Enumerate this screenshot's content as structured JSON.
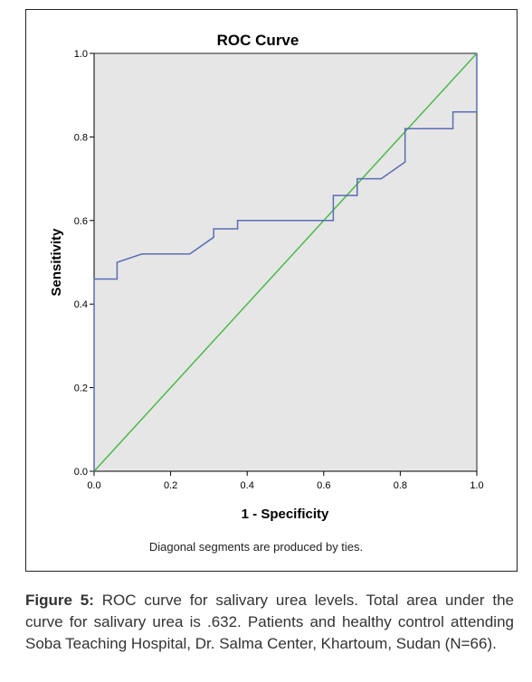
{
  "chart_data": {
    "type": "line",
    "title": "ROC Curve",
    "xlabel": "1 - Specificity",
    "ylabel": "Sensitivity",
    "xlim": [
      0.0,
      1.0
    ],
    "ylim": [
      0.0,
      1.0
    ],
    "x_ticks": [
      "0.0",
      "0.2",
      "0.4",
      "0.6",
      "0.8",
      "1.0"
    ],
    "y_ticks": [
      "0.0",
      "0.2",
      "0.4",
      "0.6",
      "0.8",
      "1.0"
    ],
    "grid": false,
    "footnote": "Diagonal segments are produced by ties.",
    "series": [
      {
        "color": "#5a6db4",
        "points": [
          [
            0.0,
            0.0
          ],
          [
            0.0,
            0.46
          ],
          [
            0.06,
            0.46
          ],
          [
            0.06,
            0.5
          ],
          [
            0.125,
            0.52
          ],
          [
            0.25,
            0.52
          ],
          [
            0.3125,
            0.56
          ],
          [
            0.3125,
            0.58
          ],
          [
            0.375,
            0.58
          ],
          [
            0.375,
            0.6
          ],
          [
            0.625,
            0.6
          ],
          [
            0.625,
            0.66
          ],
          [
            0.6875,
            0.66
          ],
          [
            0.6875,
            0.7
          ],
          [
            0.75,
            0.7
          ],
          [
            0.8125,
            0.74
          ],
          [
            0.8125,
            0.82
          ],
          [
            0.9375,
            0.82
          ],
          [
            0.9375,
            0.86
          ],
          [
            1.0,
            0.86
          ],
          [
            1.0,
            1.0
          ]
        ]
      },
      {
        "color": "#4cba4c",
        "points": [
          [
            0.0,
            0.0
          ],
          [
            1.0,
            1.0
          ]
        ]
      }
    ],
    "colors": {
      "plot_background": "#e6e6e6",
      "roc_line": "#5a6db4",
      "reference_line": "#4cba4c",
      "axis": "#000000"
    }
  },
  "caption": {
    "label": "Figure 5:",
    "text": " ROC curve for salivary urea levels. Total area under the curve for salivary urea is .632. Patients and healthy control attending Soba Teaching Hospital, Dr. Salma Center, Khartoum, Sudan (N=66)."
  }
}
